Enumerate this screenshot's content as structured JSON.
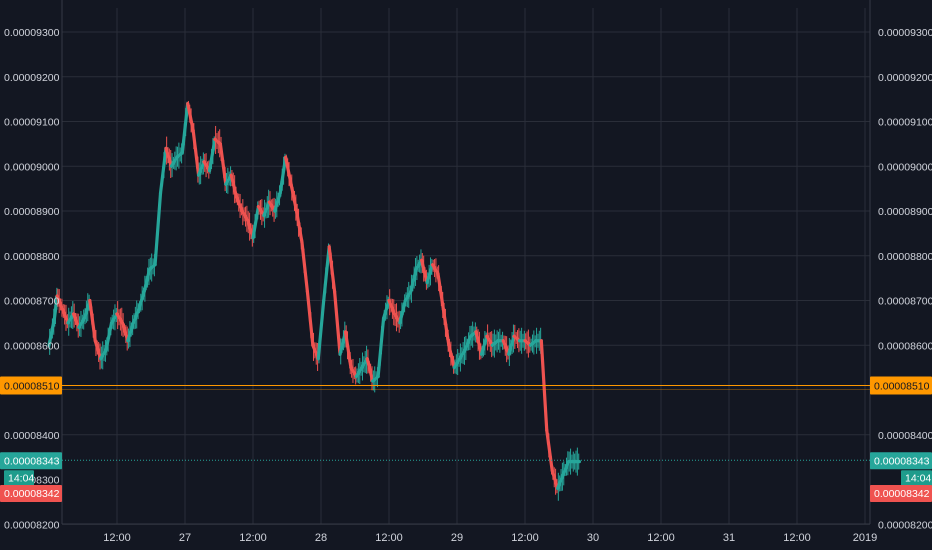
{
  "colors": {
    "background": "#131722",
    "grid": "#2a2e39",
    "axis_text": "#d1d4dc",
    "up": "#26a69a",
    "down": "#ef5350",
    "hline": "#ff9800"
  },
  "chart_data": {
    "type": "line",
    "title": "",
    "xlabel": "",
    "ylabel": "",
    "ylim": [
      8.2e-05,
      9.3e-05
    ],
    "y_ticks": [
      "0.00009300",
      "0.00009200",
      "0.00009100",
      "0.00009000",
      "0.00008900",
      "0.00008800",
      "0.00008700",
      "0.00008600",
      "0.00008400",
      "0.00008200"
    ],
    "y_tick_values": [
      9.3e-05,
      9.2e-05,
      9.1e-05,
      9e-05,
      8.9e-05,
      8.8e-05,
      8.7e-05,
      8.6e-05,
      8.4e-05,
      8.2e-05
    ],
    "x_ticks": [
      {
        "label": "12:00",
        "day": 0.5
      },
      {
        "label": "27",
        "day": 1
      },
      {
        "label": "12:00",
        "day": 1.5
      },
      {
        "label": "28",
        "day": 2
      },
      {
        "label": "12:00",
        "day": 2.5
      },
      {
        "label": "29",
        "day": 3
      },
      {
        "label": "12:00",
        "day": 3.5
      },
      {
        "label": "30",
        "day": 4
      },
      {
        "label": "12:00",
        "day": 4.5
      },
      {
        "label": "31",
        "day": 5
      },
      {
        "label": "12:00",
        "day": 5.5
      },
      {
        "label": "2019",
        "day": 6
      }
    ],
    "x_range_days": [
      0.0,
      6.08
    ],
    "series": [
      {
        "x_days": [
          0.0,
          0.04,
          0.06,
          0.1,
          0.14,
          0.18,
          0.22,
          0.26,
          0.3,
          0.34,
          0.38,
          0.42,
          0.46,
          0.5,
          0.54,
          0.58,
          0.62,
          0.66,
          0.7,
          0.74,
          0.78,
          0.82,
          0.86,
          0.9,
          0.94,
          0.98,
          1.02,
          1.06,
          1.1,
          1.14,
          1.18,
          1.22,
          1.26,
          1.3,
          1.34,
          1.38,
          1.42,
          1.46,
          1.5,
          1.54,
          1.58,
          1.62,
          1.66,
          1.7,
          1.74,
          1.78,
          1.82,
          1.86,
          1.9,
          1.94,
          1.98,
          2.02,
          2.06,
          2.1,
          2.14,
          2.18,
          2.22,
          2.26,
          2.3,
          2.34,
          2.38,
          2.42,
          2.46,
          2.5,
          2.54,
          2.58,
          2.62,
          2.66,
          2.7,
          2.74,
          2.78,
          2.82,
          2.86,
          2.9,
          2.94,
          2.98,
          3.02,
          3.06,
          3.1,
          3.14,
          3.18,
          3.22,
          3.26,
          3.3,
          3.34,
          3.38,
          3.42,
          3.46,
          3.5,
          3.54,
          3.58,
          3.62,
          3.66,
          3.7,
          3.74,
          3.78,
          3.82,
          3.86,
          3.9
        ],
        "values": [
          8.6e-05,
          8.66e-05,
          8.71e-05,
          8.68e-05,
          8.65e-05,
          8.67e-05,
          8.64e-05,
          8.66e-05,
          8.7e-05,
          8.61e-05,
          8.57e-05,
          8.59e-05,
          8.65e-05,
          8.67e-05,
          8.65e-05,
          8.61e-05,
          8.65e-05,
          8.68e-05,
          8.72e-05,
          8.77e-05,
          8.78e-05,
          8.94e-05,
          9.04e-05,
          9e-05,
          9.02e-05,
          9.03e-05,
          9.14e-05,
          9.08e-05,
          8.98e-05,
          9.01e-05,
          8.99e-05,
          9.06e-05,
          9.05e-05,
          8.96e-05,
          8.98e-05,
          8.93e-05,
          8.9e-05,
          8.88e-05,
          8.84e-05,
          8.91e-05,
          8.89e-05,
          8.92e-05,
          8.9e-05,
          8.94e-05,
          9.02e-05,
          8.96e-05,
          8.9e-05,
          8.83e-05,
          8.72e-05,
          8.6e-05,
          8.57e-05,
          8.7e-05,
          8.82e-05,
          8.72e-05,
          8.58e-05,
          8.63e-05,
          8.55e-05,
          8.53e-05,
          8.55e-05,
          8.57e-05,
          8.52e-05,
          8.53e-05,
          8.66e-05,
          8.7e-05,
          8.67e-05,
          8.65e-05,
          8.7e-05,
          8.72e-05,
          8.77e-05,
          8.79e-05,
          8.74e-05,
          8.78e-05,
          8.76e-05,
          8.68e-05,
          8.6e-05,
          8.55e-05,
          8.57e-05,
          8.59e-05,
          8.62e-05,
          8.63e-05,
          8.58e-05,
          8.62e-05,
          8.6e-05,
          8.61e-05,
          8.61e-05,
          8.58e-05,
          8.62e-05,
          8.61e-05,
          8.61e-05,
          8.6e-05,
          8.61e-05,
          8.61e-05,
          8.41e-05,
          8.32e-05,
          8.28e-05,
          8.31e-05,
          8.34e-05,
          8.34e-05,
          8.34e-05
        ]
      }
    ],
    "horizontal_line": {
      "value": 8.51e-05,
      "label": "0.00008510"
    },
    "last_price": {
      "value": 8.343e-05,
      "label": "0.00008343"
    },
    "countdown": {
      "label": "14:04"
    },
    "bid": {
      "label": "0.00008342"
    },
    "partial_tick": {
      "label": "0.00008300"
    }
  }
}
